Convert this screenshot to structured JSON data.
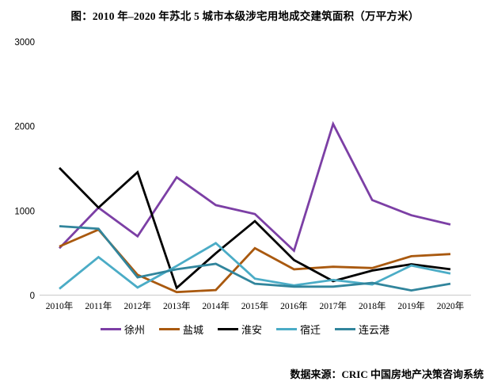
{
  "title": "图：2010 年–2020 年苏北 5 城市本级涉宅用地成交建筑面积（万平方米）",
  "source": "数据来源：CRIC 中国房地产决策咨询系统",
  "colors": {
    "background": "#ffffff",
    "axis_line": "#c9c9c9",
    "text": "#000000"
  },
  "chart_data": {
    "type": "line",
    "title": "图：2010 年–2020 年苏北 5 城市本级涉宅用地成交建筑面积（万平方米）",
    "xlabel": "",
    "ylabel": "",
    "ylim": [
      0,
      3000
    ],
    "yticks": [
      0,
      1000,
      2000,
      3000
    ],
    "grid": false,
    "legend_position": "bottom",
    "categories": [
      "2010年",
      "2011年",
      "2012年",
      "2013年",
      "2014年",
      "2015年",
      "2016年",
      "2017年",
      "2018年",
      "2019年",
      "2020年"
    ],
    "series": [
      {
        "key": "xuzhou",
        "name": "徐州",
        "color": "#7c3fa5",
        "values": [
          560,
          1040,
          700,
          1400,
          1070,
          965,
          530,
          2030,
          1130,
          950,
          840
        ]
      },
      {
        "key": "yancheng",
        "name": "盐城",
        "color": "#a9590f",
        "values": [
          580,
          780,
          245,
          40,
          65,
          560,
          310,
          340,
          325,
          465,
          490
        ]
      },
      {
        "key": "huaian",
        "name": "淮安",
        "color": "#000000",
        "values": [
          1510,
          1040,
          1460,
          90,
          500,
          880,
          420,
          170,
          295,
          370,
          310
        ]
      },
      {
        "key": "suqian",
        "name": "宿迁",
        "color": "#4bacc6",
        "values": [
          80,
          455,
          95,
          350,
          620,
          200,
          120,
          185,
          130,
          355,
          260
        ]
      },
      {
        "key": "lianyungang",
        "name": "连云港",
        "color": "#31859c",
        "values": [
          820,
          790,
          215,
          310,
          375,
          140,
          105,
          105,
          150,
          60,
          140
        ]
      }
    ]
  }
}
